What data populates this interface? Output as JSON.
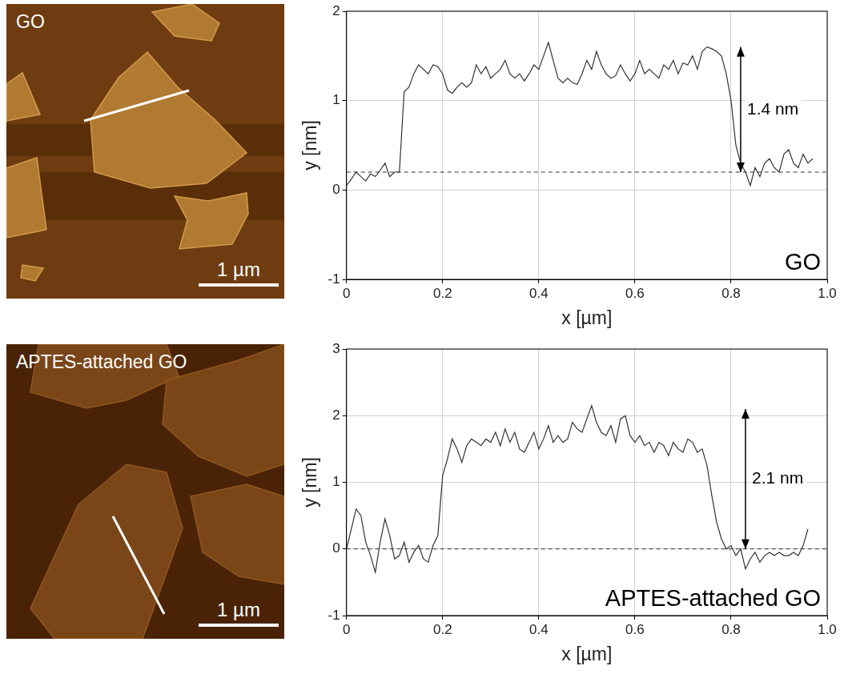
{
  "images": [
    {
      "label": "GO",
      "scale_bar": "1 µm"
    },
    {
      "label": "APTES-attached GO",
      "scale_bar": "1 µm"
    }
  ],
  "chart_data": [
    {
      "type": "line",
      "x_label": "x [µm]",
      "y_label": "y [nm]",
      "inset_label": "GO",
      "xlim": [
        0,
        1
      ],
      "xticks": [
        0,
        0.2,
        0.4,
        0.6,
        0.8,
        {
          "value": 1,
          "label": "1.0"
        }
      ],
      "ylim": [
        -1,
        2
      ],
      "yticks": [
        -1,
        0,
        1,
        2
      ],
      "grid": true,
      "reference_line": 0.2,
      "arrow": {
        "x": 0.82,
        "from": 0.2,
        "to": 1.6,
        "label": "1.4 nm"
      },
      "color": "#333333",
      "x": [
        0,
        0.01,
        0.02,
        0.03,
        0.04,
        0.05,
        0.06,
        0.07,
        0.08,
        0.09,
        0.1,
        0.11,
        0.12,
        0.13,
        0.14,
        0.15,
        0.16,
        0.17,
        0.18,
        0.19,
        0.2,
        0.21,
        0.22,
        0.23,
        0.24,
        0.25,
        0.26,
        0.27,
        0.28,
        0.29,
        0.3,
        0.31,
        0.32,
        0.33,
        0.34,
        0.35,
        0.36,
        0.37,
        0.38,
        0.39,
        0.4,
        0.41,
        0.42,
        0.43,
        0.44,
        0.45,
        0.46,
        0.47,
        0.48,
        0.49,
        0.5,
        0.51,
        0.52,
        0.53,
        0.54,
        0.55,
        0.56,
        0.57,
        0.58,
        0.59,
        0.6,
        0.61,
        0.62,
        0.63,
        0.64,
        0.65,
        0.66,
        0.67,
        0.68,
        0.69,
        0.7,
        0.71,
        0.72,
        0.73,
        0.74,
        0.75,
        0.76,
        0.77,
        0.78,
        0.79,
        0.8,
        0.81,
        0.82,
        0.83,
        0.84,
        0.85,
        0.86,
        0.87,
        0.88,
        0.89,
        0.9,
        0.91,
        0.92,
        0.93,
        0.94,
        0.95,
        0.96,
        0.97
      ],
      "values": [
        0.05,
        0.12,
        0.2,
        0.15,
        0.1,
        0.18,
        0.15,
        0.22,
        0.3,
        0.15,
        0.2,
        0.2,
        1.1,
        1.15,
        1.3,
        1.4,
        1.35,
        1.3,
        1.4,
        1.38,
        1.3,
        1.12,
        1.08,
        1.15,
        1.2,
        1.15,
        1.2,
        1.4,
        1.3,
        1.38,
        1.25,
        1.3,
        1.35,
        1.45,
        1.3,
        1.25,
        1.3,
        1.22,
        1.3,
        1.4,
        1.35,
        1.5,
        1.65,
        1.45,
        1.25,
        1.2,
        1.25,
        1.2,
        1.18,
        1.3,
        1.45,
        1.35,
        1.55,
        1.4,
        1.3,
        1.25,
        1.28,
        1.4,
        1.3,
        1.22,
        1.3,
        1.45,
        1.3,
        1.35,
        1.3,
        1.25,
        1.4,
        1.35,
        1.45,
        1.3,
        1.42,
        1.4,
        1.5,
        1.35,
        1.55,
        1.6,
        1.58,
        1.55,
        1.5,
        1.3,
        1.0,
        0.5,
        0.3,
        0.2,
        0.05,
        0.25,
        0.15,
        0.3,
        0.35,
        0.25,
        0.2,
        0.4,
        0.45,
        0.3,
        0.25,
        0.4,
        0.3,
        0.35
      ]
    },
    {
      "type": "line",
      "x_label": "x [µm]",
      "y_label": "y [nm]",
      "inset_label": "APTES-attached GO",
      "xlim": [
        0,
        1
      ],
      "xticks": [
        0,
        0.2,
        0.4,
        0.6,
        0.8,
        {
          "value": 1,
          "label": "1.0"
        }
      ],
      "ylim": [
        -1,
        3
      ],
      "yticks": [
        -1,
        0,
        1,
        2,
        3
      ],
      "grid": true,
      "reference_line": 0,
      "arrow": {
        "x": 0.83,
        "from": 0,
        "to": 2.1,
        "label": "2.1 nm"
      },
      "color": "#333333",
      "x": [
        0,
        0.01,
        0.02,
        0.03,
        0.04,
        0.05,
        0.06,
        0.07,
        0.08,
        0.09,
        0.1,
        0.11,
        0.12,
        0.13,
        0.14,
        0.15,
        0.16,
        0.17,
        0.18,
        0.19,
        0.2,
        0.21,
        0.22,
        0.23,
        0.24,
        0.25,
        0.26,
        0.27,
        0.28,
        0.29,
        0.3,
        0.31,
        0.32,
        0.33,
        0.34,
        0.35,
        0.36,
        0.37,
        0.38,
        0.39,
        0.4,
        0.41,
        0.42,
        0.43,
        0.44,
        0.45,
        0.46,
        0.47,
        0.48,
        0.49,
        0.5,
        0.51,
        0.52,
        0.53,
        0.54,
        0.55,
        0.56,
        0.57,
        0.58,
        0.59,
        0.6,
        0.61,
        0.62,
        0.63,
        0.64,
        0.65,
        0.66,
        0.67,
        0.68,
        0.69,
        0.7,
        0.71,
        0.72,
        0.73,
        0.74,
        0.75,
        0.76,
        0.77,
        0.78,
        0.79,
        0.8,
        0.81,
        0.82,
        0.83,
        0.84,
        0.85,
        0.86,
        0.87,
        0.88,
        0.89,
        0.9,
        0.91,
        0.92,
        0.93,
        0.94,
        0.95,
        0.96
      ],
      "values": [
        0.0,
        0.3,
        0.6,
        0.5,
        0.1,
        -0.1,
        -0.35,
        0.1,
        0.45,
        0.2,
        -0.15,
        -0.1,
        0.1,
        -0.2,
        -0.05,
        0.05,
        -0.15,
        -0.2,
        0.05,
        0.2,
        1.1,
        1.35,
        1.65,
        1.5,
        1.3,
        1.55,
        1.65,
        1.6,
        1.55,
        1.65,
        1.6,
        1.75,
        1.55,
        1.8,
        1.6,
        1.75,
        1.5,
        1.45,
        1.6,
        1.75,
        1.5,
        1.65,
        1.85,
        1.6,
        1.7,
        1.6,
        1.65,
        1.9,
        1.8,
        1.75,
        1.95,
        2.15,
        1.9,
        1.75,
        1.7,
        1.85,
        1.6,
        1.95,
        2.0,
        1.7,
        1.6,
        1.7,
        1.55,
        1.6,
        1.45,
        1.6,
        1.55,
        1.4,
        1.6,
        1.5,
        1.45,
        1.65,
        1.6,
        1.45,
        1.5,
        1.25,
        0.8,
        0.4,
        0.15,
        0.0,
        0.05,
        -0.1,
        0.0,
        -0.3,
        -0.15,
        -0.05,
        -0.2,
        -0.1,
        -0.05,
        -0.1,
        -0.05,
        -0.1,
        -0.1,
        -0.05,
        -0.1,
        0.05,
        0.3
      ]
    }
  ]
}
